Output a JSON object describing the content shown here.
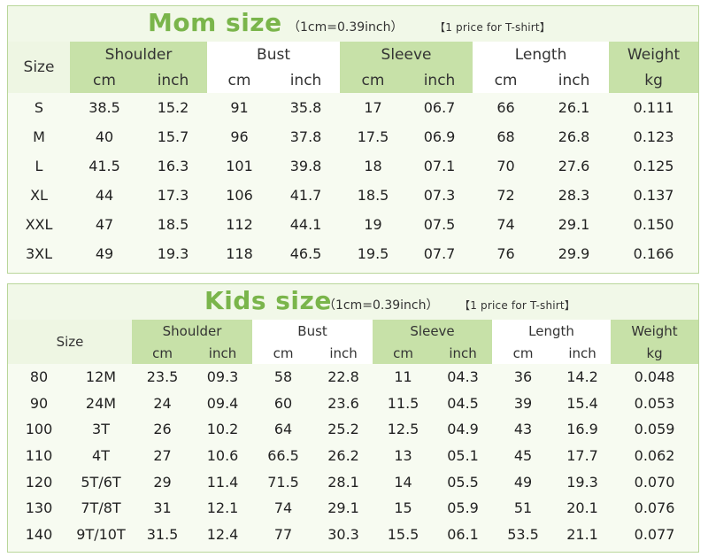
{
  "mom": {
    "title": "Mom size",
    "conversion": "（1cm=0.39inch）",
    "note": "【1 price for T-shirt】",
    "size_header": "Size",
    "groups": [
      {
        "name": "Shoulder",
        "sub": [
          "cm",
          "inch"
        ]
      },
      {
        "name": "Bust",
        "sub": [
          "cm",
          "inch"
        ]
      },
      {
        "name": "Sleeve",
        "sub": [
          "cm",
          "inch"
        ]
      },
      {
        "name": "Length",
        "sub": [
          "cm",
          "inch"
        ]
      },
      {
        "name": "Weight",
        "sub": [
          "kg"
        ]
      }
    ],
    "rows": [
      [
        "S",
        "38.5",
        "15.2",
        "91",
        "35.8",
        "17",
        "06.7",
        "66",
        "26.1",
        "0.111"
      ],
      [
        "M",
        "40",
        "15.7",
        "96",
        "37.8",
        "17.5",
        "06.9",
        "68",
        "26.8",
        "0.123"
      ],
      [
        "L",
        "41.5",
        "16.3",
        "101",
        "39.8",
        "18",
        "07.1",
        "70",
        "27.6",
        "0.125"
      ],
      [
        "XL",
        "44",
        "17.3",
        "106",
        "41.7",
        "18.5",
        "07.3",
        "72",
        "28.3",
        "0.137"
      ],
      [
        "XXL",
        "47",
        "18.5",
        "112",
        "44.1",
        "19",
        "07.5",
        "74",
        "29.1",
        "0.150"
      ],
      [
        "3XL",
        "49",
        "19.3",
        "118",
        "46.5",
        "19.5",
        "07.7",
        "76",
        "29.9",
        "0.166"
      ]
    ]
  },
  "kids": {
    "title": "Kids size",
    "conversion": "（1cm=0.39inch）",
    "note": "【1 price for T-shirt】",
    "size_header": "Size",
    "groups": [
      {
        "name": "Shoulder",
        "sub": [
          "cm",
          "inch"
        ]
      },
      {
        "name": "Bust",
        "sub": [
          "cm",
          "inch"
        ]
      },
      {
        "name": "Sleeve",
        "sub": [
          "cm",
          "inch"
        ]
      },
      {
        "name": "Length",
        "sub": [
          "cm",
          "inch"
        ]
      },
      {
        "name": "Weight",
        "sub": [
          "kg"
        ]
      }
    ],
    "rows": [
      [
        "80",
        "12M",
        "23.5",
        "09.3",
        "58",
        "22.8",
        "11",
        "04.3",
        "36",
        "14.2",
        "0.048"
      ],
      [
        "90",
        "24M",
        "24",
        "09.4",
        "60",
        "23.6",
        "11.5",
        "04.5",
        "39",
        "15.4",
        "0.053"
      ],
      [
        "100",
        "3T",
        "26",
        "10.2",
        "64",
        "25.2",
        "12.5",
        "04.9",
        "43",
        "16.9",
        "0.059"
      ],
      [
        "110",
        "4T",
        "27",
        "10.6",
        "66.5",
        "26.2",
        "13",
        "05.1",
        "45",
        "17.7",
        "0.062"
      ],
      [
        "120",
        "5T/6T",
        "29",
        "11.4",
        "71.5",
        "28.1",
        "14",
        "05.5",
        "49",
        "19.3",
        "0.070"
      ],
      [
        "130",
        "7T/8T",
        "31",
        "12.1",
        "74",
        "29.1",
        "15",
        "05.9",
        "51",
        "20.1",
        "0.076"
      ],
      [
        "140",
        "9T/10T",
        "31.5",
        "12.4",
        "77",
        "30.3",
        "15.5",
        "06.1",
        "53.5",
        "21.1",
        "0.077"
      ]
    ]
  },
  "colors": {
    "accent": "#7ab54b",
    "header_highlight": "#c7e1a8",
    "column_highlight": "#edf6e2",
    "border": "#b9d69a"
  }
}
